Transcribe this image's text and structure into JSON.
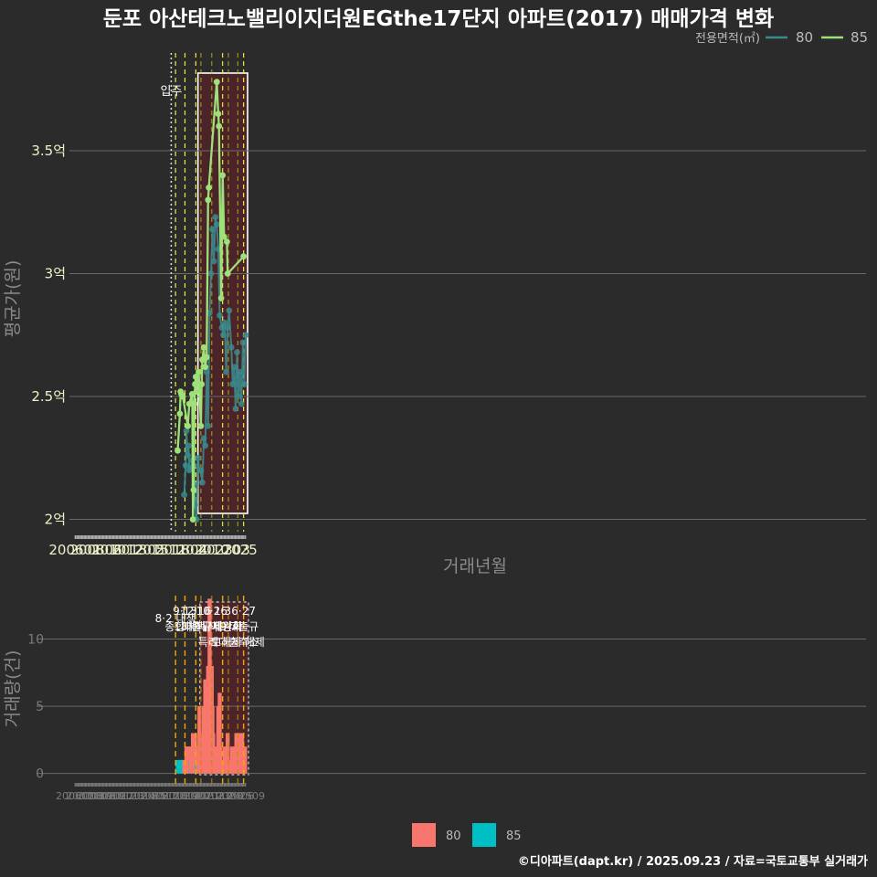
{
  "title": "둔포 아산테크노밸리이지더원EGthe17단지 아파트(2017) 매매가격 변화",
  "footer": "©디아파트(dapt.kr) / 2025.09.23 / 자료=국토교통부 실거래가",
  "chart_data": [
    {
      "type": "line",
      "ylabel": "평균가(원)",
      "xlabel": "거래년월",
      "ylim": [
        1.95,
        3.92
      ],
      "x_tick_labels": [
        "200601",
        "200806",
        "201012",
        "201305",
        "201511",
        "201804",
        "202010",
        "202303",
        "2025"
      ],
      "y_ticks": [
        {
          "value": 2.0,
          "label": "2억"
        },
        {
          "value": 2.5,
          "label": "2.5억"
        },
        {
          "value": 3.0,
          "label": "3억"
        },
        {
          "value": 3.5,
          "label": "3.5억"
        }
      ],
      "legend_title": "전용면적(㎡)",
      "move_in": {
        "label": "입주",
        "date": "2017-02"
      },
      "policy_dates": [
        "2017-08",
        "2018-09",
        "2019-12",
        "2020-07",
        "2021-10",
        "2023-01",
        "2023-09",
        "2024-10",
        "2025-06"
      ],
      "highlight_range": [
        "2020-08",
        "2025-09"
      ],
      "series": [
        {
          "name": "80",
          "color": "#3a8a8c",
          "points": [
            [
              "2018-08",
              2.1
            ],
            [
              "2018-10",
              2.22
            ],
            [
              "2018-11",
              2.36
            ],
            [
              "2019-01",
              2.26
            ],
            [
              "2019-02",
              2.3
            ],
            [
              "2019-03",
              2.2
            ],
            [
              "2019-05",
              2.21
            ],
            [
              "2019-07",
              2.24
            ],
            [
              "2019-09",
              2.22
            ],
            [
              "2019-10",
              2.14
            ],
            [
              "2019-11",
              2.06
            ],
            [
              "2020-01",
              2.0
            ],
            [
              "2020-03",
              2.25
            ],
            [
              "2020-05",
              2.2
            ],
            [
              "2020-07",
              2.2
            ],
            [
              "2020-09",
              2.15
            ],
            [
              "2020-11",
              2.33
            ],
            [
              "2021-01",
              2.3
            ],
            [
              "2021-03",
              2.6
            ],
            [
              "2021-05",
              2.38
            ],
            [
              "2021-07",
              2.84
            ],
            [
              "2021-09",
              3.0
            ],
            [
              "2021-11",
              3.18
            ],
            [
              "2022-01",
              3.05
            ],
            [
              "2022-03",
              3.23
            ],
            [
              "2022-05",
              3.2
            ],
            [
              "2022-07",
              3.1
            ],
            [
              "2022-09",
              2.83
            ],
            [
              "2022-12",
              2.78
            ],
            [
              "2023-02",
              2.75
            ],
            [
              "2023-04",
              2.8
            ],
            [
              "2023-06",
              2.6
            ],
            [
              "2023-08",
              2.78
            ],
            [
              "2023-10",
              2.85
            ],
            [
              "2024-01",
              2.7
            ],
            [
              "2024-03",
              2.55
            ],
            [
              "2024-05",
              2.62
            ],
            [
              "2024-07",
              2.45
            ],
            [
              "2024-09",
              2.68
            ],
            [
              "2024-11",
              2.5
            ],
            [
              "2025-01",
              2.6
            ],
            [
              "2025-03",
              2.47
            ],
            [
              "2025-05",
              2.72
            ],
            [
              "2025-07",
              2.55
            ],
            [
              "2025-09",
              2.75
            ]
          ]
        },
        {
          "name": "85",
          "color": "#9ee07a",
          "points": [
            [
              "2017-11",
              2.28
            ],
            [
              "2018-02",
              2.43
            ],
            [
              "2018-03",
              2.52
            ],
            [
              "2018-04",
              2.51
            ],
            [
              "2018-06",
              2.5
            ],
            [
              "2019-01",
              2.38
            ],
            [
              "2019-03",
              2.47
            ],
            [
              "2019-07",
              2.51
            ],
            [
              "2019-08",
              2.0
            ],
            [
              "2019-09",
              2.12
            ],
            [
              "2019-10",
              2.47
            ],
            [
              "2019-11",
              2.55
            ],
            [
              "2019-12",
              2.58
            ],
            [
              "2020-01",
              2.52
            ],
            [
              "2020-04",
              2.6
            ],
            [
              "2020-07",
              2.38
            ],
            [
              "2020-08",
              2.55
            ],
            [
              "2020-09",
              2.65
            ],
            [
              "2020-11",
              2.7
            ],
            [
              "2021-01",
              2.62
            ],
            [
              "2021-03",
              2.66
            ],
            [
              "2021-05",
              3.3
            ],
            [
              "2021-06",
              3.35
            ],
            [
              "2022-05",
              3.78
            ],
            [
              "2022-07",
              3.65
            ],
            [
              "2022-08",
              3.6
            ],
            [
              "2022-11",
              2.9
            ],
            [
              "2023-01",
              3.4
            ],
            [
              "2023-03",
              3.15
            ],
            [
              "2023-07",
              3.13
            ],
            [
              "2023-08",
              3.0
            ],
            [
              "2025-06",
              3.07
            ]
          ]
        }
      ]
    },
    {
      "type": "bar",
      "ylabel": "거래량(건)",
      "ylim": [
        -0.5,
        13.5
      ],
      "x_tick_labels": [
        "200601",
        "200703",
        "200806",
        "200909",
        "201012",
        "201202",
        "201305",
        "201408",
        "201511",
        "201701",
        "201804",
        "201907",
        "202010",
        "202112",
        "202303",
        "202406",
        "202509"
      ],
      "y_ticks": [
        {
          "value": 0,
          "label": "0"
        },
        {
          "value": 5,
          "label": "5"
        },
        {
          "value": 10,
          "label": "10"
        }
      ],
      "highlight_range": [
        "2020-08",
        "2025-09"
      ],
      "policy_events": [
        {
          "date": "2017-08",
          "label": "8·2 대책"
        },
        {
          "date": "2018-09",
          "label": "9·13\n종합대책"
        },
        {
          "date": "2019-12",
          "label": "12·16\n18차대책"
        },
        {
          "date": "2020-07",
          "label": ""
        },
        {
          "date": "2021-10",
          "label": "10·26\n대출규제강화"
        },
        {
          "date": "2023-01",
          "label": "1·3\n규제완화"
        },
        {
          "date": "2023-09",
          "label": "9·7\n특례대출축소"
        },
        {
          "date": "2024-10",
          "label": "토허제 해제"
        },
        {
          "date": "2025-06",
          "label": "6·27\n대출규"
        }
      ],
      "series": [
        {
          "name": "80",
          "color": "#f8766d",
          "points": [
            [
              "2018-08",
              1
            ],
            [
              "2018-10",
              1
            ],
            [
              "2018-11",
              2
            ],
            [
              "2019-01",
              1
            ],
            [
              "2019-03",
              1
            ],
            [
              "2019-05",
              1
            ],
            [
              "2019-07",
              2
            ],
            [
              "2019-08",
              3
            ],
            [
              "2019-10",
              1
            ],
            [
              "2019-11",
              2
            ],
            [
              "2020-01",
              1
            ],
            [
              "2020-03",
              2
            ],
            [
              "2020-05",
              5
            ],
            [
              "2020-06",
              3
            ],
            [
              "2020-07",
              3
            ],
            [
              "2020-09",
              1
            ],
            [
              "2020-10",
              2
            ],
            [
              "2020-11",
              4
            ],
            [
              "2020-12",
              1
            ],
            [
              "2021-01",
              6
            ],
            [
              "2021-02",
              5
            ],
            [
              "2021-03",
              3
            ],
            [
              "2021-04",
              2
            ],
            [
              "2021-05",
              7
            ],
            [
              "2021-06",
              4
            ],
            [
              "2021-07",
              13
            ],
            [
              "2021-08",
              6
            ],
            [
              "2021-09",
              4
            ],
            [
              "2021-10",
              8
            ],
            [
              "2021-11",
              5
            ],
            [
              "2021-12",
              3
            ],
            [
              "2022-01",
              1
            ],
            [
              "2022-03",
              2
            ],
            [
              "2022-04",
              1
            ],
            [
              "2022-06",
              1
            ],
            [
              "2022-07",
              4
            ],
            [
              "2022-08",
              3
            ],
            [
              "2022-09",
              6
            ],
            [
              "2022-10",
              2
            ],
            [
              "2022-12",
              1
            ],
            [
              "2023-02",
              1
            ],
            [
              "2023-04",
              2
            ],
            [
              "2023-05",
              1
            ],
            [
              "2023-06",
              1
            ],
            [
              "2023-08",
              2
            ],
            [
              "2023-10",
              1
            ],
            [
              "2023-12",
              1
            ],
            [
              "2024-02",
              2
            ],
            [
              "2024-03",
              1
            ],
            [
              "2024-05",
              2
            ],
            [
              "2024-06",
              1
            ],
            [
              "2024-08",
              3
            ],
            [
              "2024-09",
              2
            ],
            [
              "2024-11",
              3
            ],
            [
              "2024-12",
              1
            ],
            [
              "2025-02",
              2
            ],
            [
              "2025-03",
              1
            ],
            [
              "2025-04",
              3
            ],
            [
              "2025-05",
              2
            ],
            [
              "2025-07",
              1
            ],
            [
              "2025-08",
              2
            ]
          ]
        },
        {
          "name": "85",
          "color": "#00bfc4",
          "points": [
            [
              "2017-11",
              1
            ],
            [
              "2018-02",
              1
            ],
            [
              "2018-03",
              1
            ],
            [
              "2018-04",
              1
            ],
            [
              "2018-06",
              1
            ],
            [
              "2019-01",
              1
            ],
            [
              "2019-03",
              1
            ],
            [
              "2019-09",
              1
            ],
            [
              "2019-10",
              1
            ],
            [
              "2019-11",
              1
            ],
            [
              "2019-12",
              1
            ],
            [
              "2020-01",
              1
            ],
            [
              "2020-04",
              1
            ],
            [
              "2020-08",
              1
            ],
            [
              "2020-09",
              1
            ],
            [
              "2020-11",
              1
            ],
            [
              "2021-01",
              1
            ],
            [
              "2021-03",
              1
            ],
            [
              "2021-05",
              1
            ],
            [
              "2021-06",
              1
            ],
            [
              "2022-05",
              1
            ],
            [
              "2022-07",
              1
            ],
            [
              "2022-08",
              1
            ],
            [
              "2022-11",
              1
            ],
            [
              "2023-01",
              1
            ],
            [
              "2023-03",
              1
            ],
            [
              "2023-07",
              1
            ],
            [
              "2023-08",
              1
            ]
          ]
        }
      ]
    }
  ]
}
